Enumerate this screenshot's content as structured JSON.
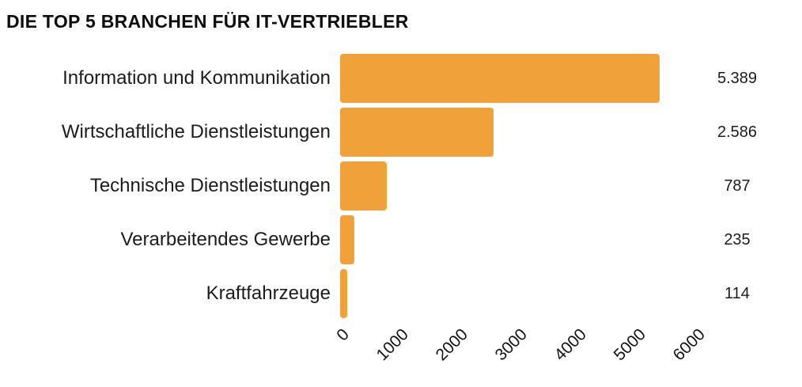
{
  "title": "DIE TOP 5 BRANCHEN FÜR IT-VERTRIEBLER",
  "chart_data": {
    "type": "bar",
    "orientation": "horizontal",
    "title": "DIE TOP 5 BRANCHEN FÜR IT-VERTRIEBLER",
    "categories": [
      "Information und Kommunikation",
      "Wirtschaftliche Dienstleistungen",
      "Technische Dienstleistungen",
      "Verarbeitendes Gewerbe",
      "Kraftfahrzeuge"
    ],
    "values": [
      5389,
      2586,
      787,
      235,
      114
    ],
    "value_labels": [
      "5.389",
      "2.586",
      "787",
      "235",
      "114"
    ],
    "xlabel": "",
    "ylabel": "",
    "xlim": [
      0,
      6000
    ],
    "x_ticks": [
      "0",
      "1000",
      "2000",
      "3000",
      "4000",
      "5000",
      "6000"
    ],
    "x_tick_rotation_deg": 45,
    "grid": false,
    "legend": "none",
    "bar_color": "#F0A139",
    "background_color": "#ffffff",
    "text_color": "#1c1c1c"
  }
}
